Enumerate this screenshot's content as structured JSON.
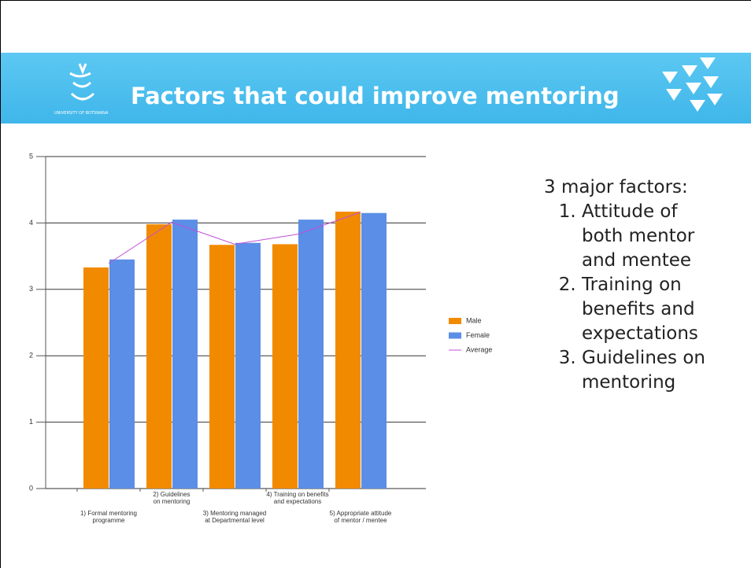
{
  "slide": {
    "title": "Factors that could improve mentoring",
    "logo_text": "UNIVERSITY OF BOTSWANA",
    "intro": "3 major factors:",
    "points": [
      "Attitude of both mentor and mentee",
      "Training on benefits and expectations",
      "Guidelines on mentoring"
    ]
  },
  "chart_data": {
    "type": "bar",
    "categories": [
      "1) Formal mentoring\nprogramme",
      "2) Guidelines\non mentoring",
      "3) Mentoring managed\nat Departmental level",
      "4) Training on benefits\nand expectations",
      "5) Appropriate attitude\nof mentor / mentee"
    ],
    "series": [
      {
        "name": "Male",
        "color": "#f28a00",
        "values": [
          3.33,
          3.98,
          3.67,
          3.68,
          4.17
        ]
      },
      {
        "name": "Female",
        "color": "#5b8ee6",
        "values": [
          3.45,
          4.05,
          3.7,
          4.05,
          4.15
        ]
      },
      {
        "name": "Average",
        "color": "#c050d8",
        "type": "line",
        "values": [
          3.39,
          4.01,
          3.68,
          3.83,
          4.16
        ]
      }
    ],
    "ylim": [
      0,
      5
    ],
    "yticks": [
      0,
      1,
      2,
      3,
      4,
      5
    ],
    "grid": true,
    "legend": "right"
  }
}
